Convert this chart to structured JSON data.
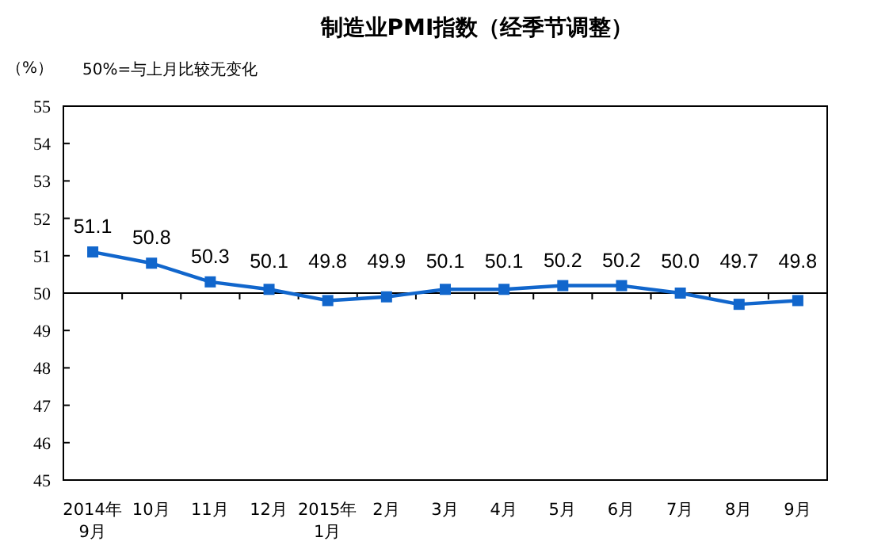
{
  "chart_data": {
    "type": "line",
    "title": "制造业PMI指数（经季节调整）",
    "ylabel": "（%）",
    "annotations": [
      "50%=与上月比较无变化"
    ],
    "categories": [
      "2014年\n9月",
      "10月",
      "11月",
      "12月",
      "2015年\n1月",
      "2月",
      "3月",
      "4月",
      "5月",
      "6月",
      "7月",
      "8月",
      "9月"
    ],
    "series": [
      {
        "color": "#1166cc",
        "values": [
          51.1,
          50.8,
          50.3,
          50.1,
          49.8,
          49.9,
          50.1,
          50.1,
          50.2,
          50.2,
          50.0,
          49.7,
          49.8
        ],
        "value_labels": [
          "51.1",
          "50.8",
          "50.3",
          "50.1",
          "49.8",
          "49.9",
          "50.1",
          "50.1",
          "50.2",
          "50.2",
          "50.0",
          "49.7",
          "49.8"
        ]
      }
    ],
    "ylim": [
      45,
      55
    ],
    "yticks": [
      45,
      46,
      47,
      48,
      49,
      50,
      51,
      52,
      53,
      54,
      55
    ],
    "ref_lines": [
      {
        "axis": "y",
        "value": 50,
        "color": "#000000"
      }
    ],
    "marker": "square",
    "grid": false
  }
}
